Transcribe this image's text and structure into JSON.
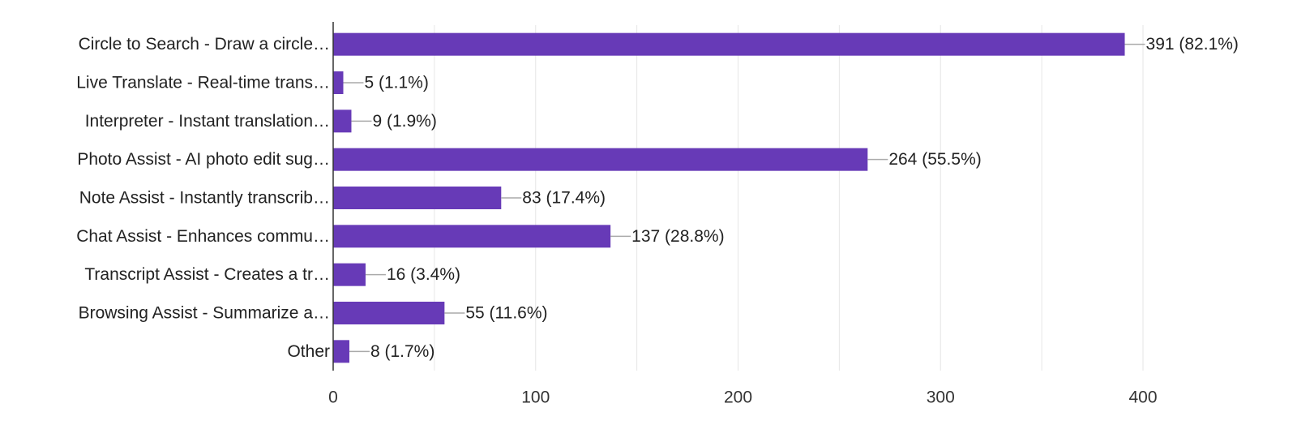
{
  "chart_data": {
    "type": "bar",
    "orientation": "horizontal",
    "categories": [
      "Circle to Search - Draw a circle…",
      "Live Translate - Real-time trans…",
      "Interpreter - Instant translation…",
      "Photo Assist - AI photo edit sug…",
      "Note Assist - Instantly transcrib…",
      "Chat Assist - Enhances commu…",
      "Transcript Assist - Creates a tr…",
      "Browsing Assist - Summarize a…",
      "Other"
    ],
    "values": [
      391,
      5,
      9,
      264,
      83,
      137,
      16,
      55,
      8
    ],
    "data_labels": [
      "391 (82.1%)",
      "5 (1.1%)",
      "9 (1.9%)",
      "264 (55.5%)",
      "83 (17.4%)",
      "137 (28.8%)",
      "16 (3.4%)",
      "55 (11.6%)",
      "8 (1.7%)"
    ],
    "xlim": [
      0,
      400
    ],
    "x_ticks": [
      "0",
      "100",
      "200",
      "300",
      "400"
    ],
    "title": "",
    "xlabel": "",
    "ylabel": "",
    "grid": true,
    "legend": "none",
    "bar_color": "#673ab7"
  }
}
